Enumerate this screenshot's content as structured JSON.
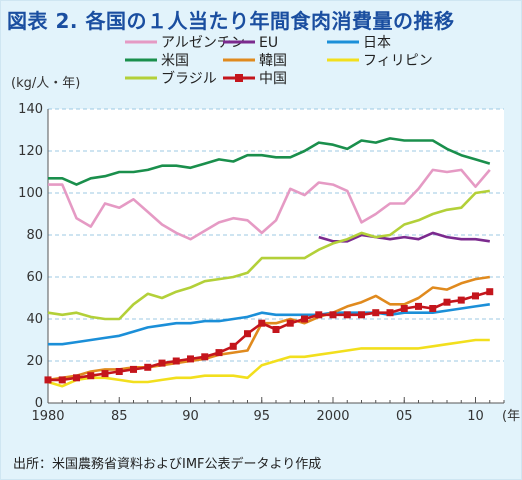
{
  "title": "図表 2. 各国の１人当たり年間食肉消費量の推移",
  "source": "出所：米国農務省資料およびIMF公表データより作成",
  "chart_data": {
    "type": "line",
    "ylabel": "(kg/人・年)",
    "xlabel": "(年)",
    "xlim": [
      1980,
      2012
    ],
    "ylim": [
      0,
      140
    ],
    "y_ticks": [
      0,
      20,
      40,
      60,
      80,
      100,
      120,
      140
    ],
    "x_ticks": [
      {
        "value": 1980,
        "label": "1980"
      },
      {
        "value": 1985,
        "label": "85"
      },
      {
        "value": 1990,
        "label": "90"
      },
      {
        "value": 1995,
        "label": "95"
      },
      {
        "value": 2000,
        "label": "2000"
      },
      {
        "value": 2005,
        "label": "05"
      },
      {
        "value": 2010,
        "label": "10"
      }
    ],
    "grid": true,
    "series": [
      {
        "name": "アルゼンチン",
        "color": "#e59ac4",
        "marker": "none",
        "x": [
          1980,
          1981,
          1982,
          1983,
          1984,
          1985,
          1986,
          1987,
          1988,
          1989,
          1990,
          1991,
          1992,
          1993,
          1994,
          1995,
          1996,
          1997,
          1998,
          1999,
          2000,
          2001,
          2002,
          2003,
          2004,
          2005,
          2006,
          2007,
          2008,
          2009,
          2010,
          2011
        ],
        "values": [
          104,
          104,
          88,
          84,
          95,
          93,
          97,
          91,
          85,
          81,
          78,
          82,
          86,
          88,
          87,
          81,
          87,
          102,
          99,
          105,
          104,
          101,
          86,
          90,
          95,
          95,
          102,
          111,
          110,
          111,
          103,
          111
        ]
      },
      {
        "name": "EU",
        "color": "#7b2a8e",
        "marker": "none",
        "x": [
          1999,
          2000,
          2001,
          2002,
          2003,
          2004,
          2005,
          2006,
          2007,
          2008,
          2009,
          2010,
          2011
        ],
        "values": [
          79,
          77,
          77,
          80,
          79,
          78,
          79,
          78,
          81,
          79,
          78,
          78,
          77
        ]
      },
      {
        "name": "日本",
        "color": "#1b8fd8",
        "marker": "none",
        "x": [
          1980,
          1981,
          1982,
          1983,
          1984,
          1985,
          1986,
          1987,
          1988,
          1989,
          1990,
          1991,
          1992,
          1993,
          1994,
          1995,
          1996,
          1997,
          1998,
          1999,
          2000,
          2001,
          2002,
          2003,
          2004,
          2005,
          2006,
          2007,
          2008,
          2009,
          2010,
          2011
        ],
        "values": [
          28,
          28,
          29,
          30,
          31,
          32,
          34,
          36,
          37,
          38,
          38,
          39,
          39,
          40,
          41,
          43,
          42,
          42,
          42,
          42,
          43,
          43,
          43,
          43,
          42,
          43,
          43,
          43,
          44,
          45,
          46,
          47
        ]
      },
      {
        "name": "米国",
        "color": "#1a8f4c",
        "marker": "none",
        "x": [
          1980,
          1981,
          1982,
          1983,
          1984,
          1985,
          1986,
          1987,
          1988,
          1989,
          1990,
          1991,
          1992,
          1993,
          1994,
          1995,
          1996,
          1997,
          1998,
          1999,
          2000,
          2001,
          2002,
          2003,
          2004,
          2005,
          2006,
          2007,
          2008,
          2009,
          2010,
          2011
        ],
        "values": [
          107,
          107,
          104,
          107,
          108,
          110,
          110,
          111,
          113,
          113,
          112,
          114,
          116,
          115,
          118,
          118,
          117,
          117,
          120,
          124,
          123,
          121,
          125,
          124,
          126,
          125,
          125,
          125,
          121,
          118,
          116,
          114
        ]
      },
      {
        "name": "韓国",
        "color": "#e08a1e",
        "marker": "none",
        "x": [
          1980,
          1981,
          1982,
          1983,
          1984,
          1985,
          1986,
          1987,
          1988,
          1989,
          1990,
          1991,
          1992,
          1993,
          1994,
          1995,
          1996,
          1997,
          1998,
          1999,
          2000,
          2001,
          2002,
          2003,
          2004,
          2005,
          2006,
          2007,
          2008,
          2009,
          2010,
          2011
        ],
        "values": [
          11,
          12,
          13,
          15,
          16,
          16,
          17,
          17,
          18,
          19,
          20,
          21,
          23,
          24,
          25,
          38,
          38,
          40,
          38,
          41,
          43,
          46,
          48,
          51,
          47,
          47,
          50,
          55,
          54,
          57,
          59,
          60
        ]
      },
      {
        "name": "フィリピン",
        "color": "#f2df1d",
        "marker": "none",
        "x": [
          1980,
          1981,
          1982,
          1983,
          1984,
          1985,
          1986,
          1987,
          1988,
          1989,
          1990,
          1991,
          1992,
          1993,
          1994,
          1995,
          1996,
          1997,
          1998,
          1999,
          2000,
          2001,
          2002,
          2003,
          2004,
          2005,
          2006,
          2007,
          2008,
          2009,
          2010,
          2011
        ],
        "values": [
          10,
          8,
          11,
          12,
          12,
          11,
          10,
          10,
          11,
          12,
          12,
          13,
          13,
          13,
          12,
          18,
          20,
          22,
          22,
          23,
          24,
          25,
          26,
          26,
          26,
          26,
          26,
          27,
          28,
          29,
          30,
          30
        ]
      },
      {
        "name": "ブラジル",
        "color": "#b3d039",
        "marker": "none",
        "x": [
          1980,
          1981,
          1982,
          1983,
          1984,
          1985,
          1986,
          1987,
          1988,
          1989,
          1990,
          1991,
          1992,
          1993,
          1994,
          1995,
          1996,
          1997,
          1998,
          1999,
          2000,
          2001,
          2002,
          2003,
          2004,
          2005,
          2006,
          2007,
          2008,
          2009,
          2010,
          2011
        ],
        "values": [
          43,
          42,
          43,
          41,
          40,
          40,
          47,
          52,
          50,
          53,
          55,
          58,
          59,
          60,
          62,
          69,
          69,
          69,
          69,
          73,
          76,
          78,
          81,
          79,
          80,
          85,
          87,
          90,
          92,
          93,
          100,
          101
        ]
      },
      {
        "name": "中国",
        "color": "#c4151c",
        "marker": "square",
        "x": [
          1980,
          1981,
          1982,
          1983,
          1984,
          1985,
          1986,
          1987,
          1988,
          1989,
          1990,
          1991,
          1992,
          1993,
          1994,
          1995,
          1996,
          1997,
          1998,
          1999,
          2000,
          2001,
          2002,
          2003,
          2004,
          2005,
          2006,
          2007,
          2008,
          2009,
          2010,
          2011
        ],
        "values": [
          11,
          11,
          12,
          13,
          14,
          15,
          16,
          17,
          19,
          20,
          21,
          22,
          24,
          27,
          33,
          38,
          35,
          38,
          40,
          42,
          42,
          42,
          42,
          43,
          43,
          45,
          46,
          45,
          48,
          49,
          51,
          53
        ]
      }
    ],
    "legend": {
      "placement": "top",
      "columns": [
        [
          "アルゼンチン",
          "米国",
          "ブラジル"
        ],
        [
          "EU",
          "韓国",
          "中国"
        ],
        [
          "日本",
          "フィリピン"
        ]
      ]
    }
  }
}
